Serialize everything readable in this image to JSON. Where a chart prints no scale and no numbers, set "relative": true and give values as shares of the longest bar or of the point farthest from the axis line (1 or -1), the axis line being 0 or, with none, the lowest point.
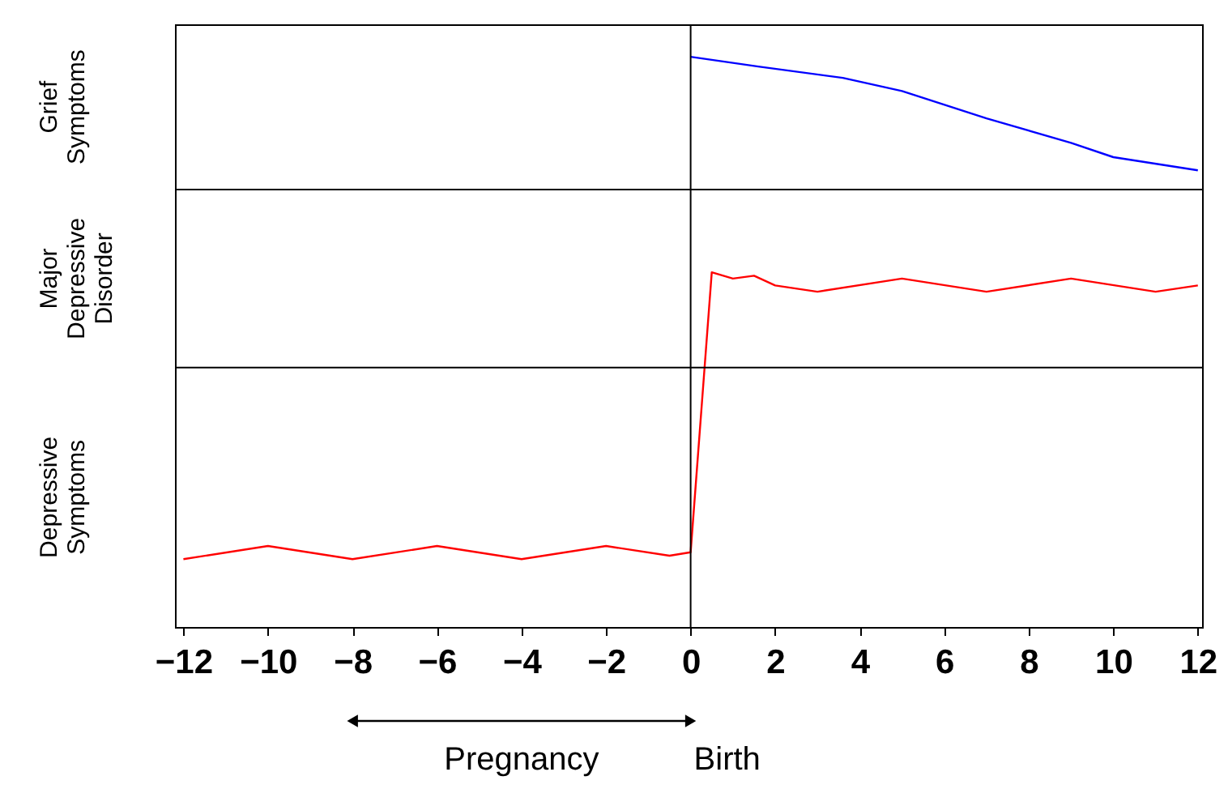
{
  "chart_data": {
    "type": "line",
    "relative": true,
    "xlim": [
      -12.2,
      12.1
    ],
    "xticks": [
      -12,
      -10,
      -8,
      -6,
      -4,
      -2,
      0,
      2,
      4,
      6,
      8,
      10,
      12
    ],
    "series": [
      {
        "color": "#0000ff",
        "x": [
          0,
          1.6,
          3.6,
          5,
          7,
          9,
          10,
          12
        ],
        "values": [
          1.0,
          0.983,
          0.963,
          0.94,
          0.892,
          0.849,
          0.824,
          0.801
        ]
      },
      {
        "color": "#ff0000",
        "x": [
          -12,
          -10,
          -8,
          -6,
          -4,
          -2,
          -0.5,
          0,
          0.5,
          1,
          1.5,
          2,
          3,
          5,
          7,
          9,
          11,
          12
        ],
        "values": [
          0.119,
          0.142,
          0.119,
          0.142,
          0.119,
          0.142,
          0.125,
          0.131,
          0.622,
          0.611,
          0.616,
          0.599,
          0.588,
          0.611,
          0.588,
          0.611,
          0.588,
          0.599
        ]
      }
    ],
    "ref_lines": [
      {
        "axis": "y",
        "value": 0.767,
        "color": "#000000"
      },
      {
        "axis": "y",
        "value": 0.455,
        "color": "#000000"
      },
      {
        "axis": "x",
        "value": 0,
        "color": "#000000",
        "label": "Birth"
      }
    ],
    "annotations": [
      "Grief Symptoms",
      "Major Depressive Disorder",
      "Depressive Symptoms",
      "Pregnancy"
    ],
    "marker": "none",
    "line_style": "solid"
  }
}
